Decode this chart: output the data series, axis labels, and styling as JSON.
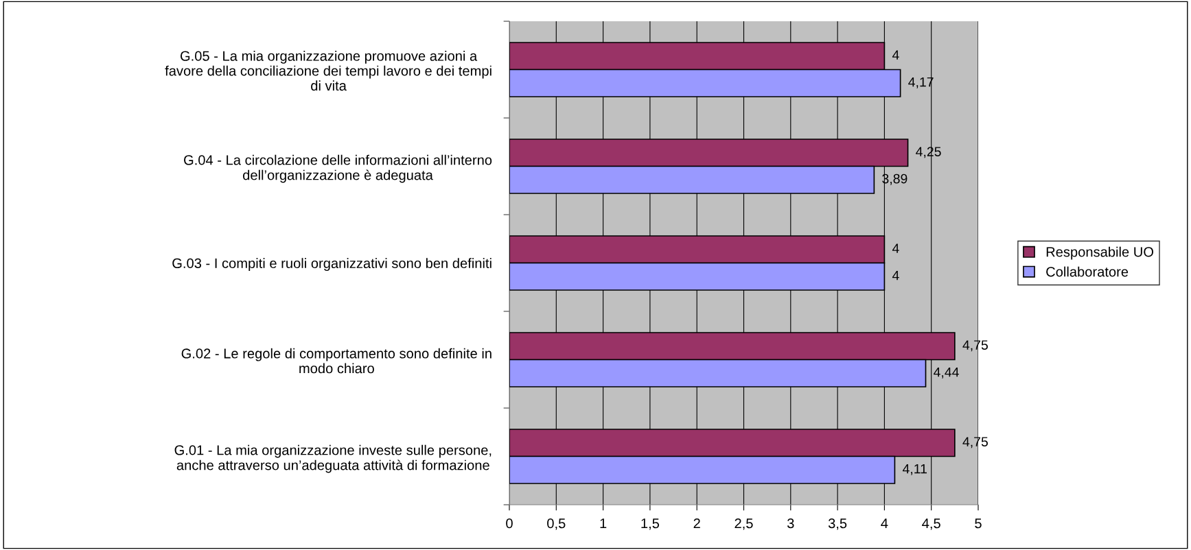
{
  "chart_data": {
    "type": "bar",
    "orientation": "horizontal",
    "categories": [
      "G.05 - La mia organizzazione promuove azioni a\nfavore della conciliazione dei tempi lavoro e dei tempi\ndi vita",
      "G.04 - La circolazione delle informazioni all’interno\ndell’organizzazione è adeguata",
      "G.03 - I compiti e ruoli organizzativi sono ben definiti",
      "G.02 - Le regole di comportamento sono definite in\nmodo chiaro",
      "G.01 - La mia organizzazione investe sulle persone,\nanche attraverso un’adeguata attività di formazione"
    ],
    "series": [
      {
        "name": "Responsabile UO",
        "color": "#993366",
        "values": [
          4,
          4.25,
          4,
          4.75,
          4.75
        ],
        "value_labels": [
          "4",
          "4,25",
          "4",
          "4,75",
          "4,75"
        ]
      },
      {
        "name": "Collaboratore",
        "color": "#9999ff",
        "values": [
          4.17,
          3.89,
          4,
          4.44,
          4.11
        ],
        "value_labels": [
          "4,17",
          "3,89",
          "4",
          "4,44",
          "4,11"
        ]
      }
    ],
    "xlim": [
      0,
      5
    ],
    "xticks": [
      0,
      {
        "value": 0.5,
        "label": "0,5"
      },
      1,
      {
        "value": 1.5,
        "label": "1,5"
      },
      2,
      {
        "value": 2.5,
        "label": "2,5"
      },
      3,
      {
        "value": 3.5,
        "label": "3,5"
      },
      4,
      {
        "value": 4.5,
        "label": "4,5"
      },
      5
    ],
    "grid": "x",
    "legend": "right"
  }
}
